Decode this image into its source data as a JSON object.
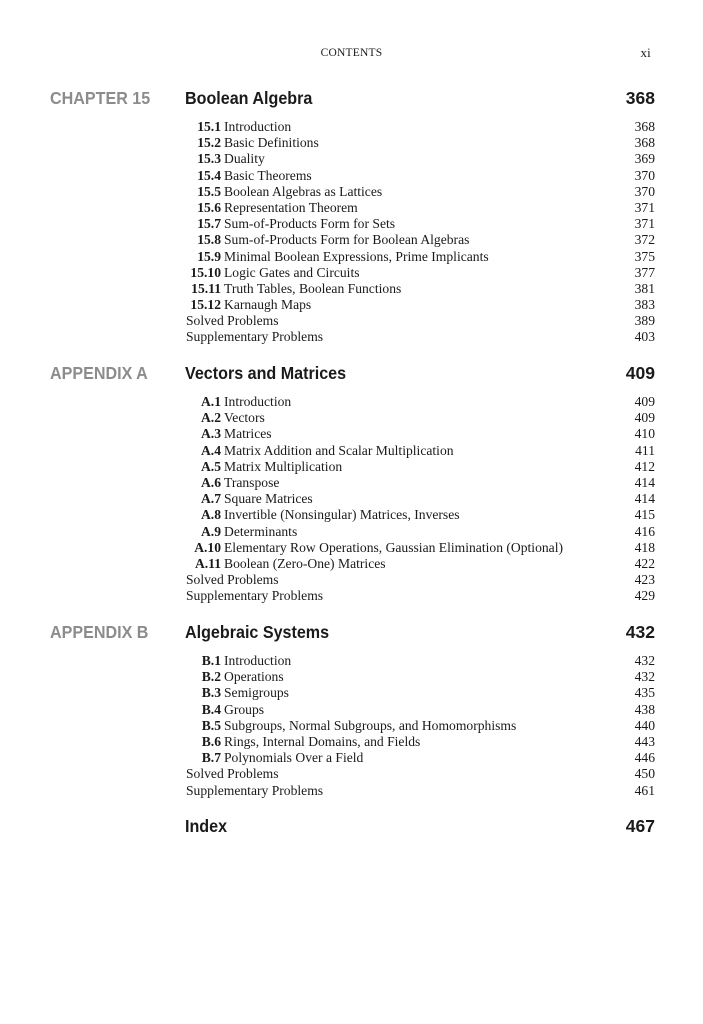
{
  "header": {
    "title": "CONTENTS",
    "page": "xi"
  },
  "sections": [
    {
      "label": "CHAPTER 15",
      "title": "Boolean Algebra",
      "page": "368",
      "entries": [
        {
          "num": "15.1",
          "text": "Introduction",
          "page": "368"
        },
        {
          "num": "15.2",
          "text": "Basic Definitions",
          "page": "368"
        },
        {
          "num": "15.3",
          "text": "Duality",
          "page": "369"
        },
        {
          "num": "15.4",
          "text": "Basic Theorems",
          "page": "370"
        },
        {
          "num": "15.5",
          "text": "Boolean Algebras as Lattices",
          "page": "370"
        },
        {
          "num": "15.6",
          "text": "Representation Theorem",
          "page": "371"
        },
        {
          "num": "15.7",
          "text": "Sum-of-Products Form for Sets",
          "page": "371"
        },
        {
          "num": "15.8",
          "text": "Sum-of-Products Form for Boolean Algebras",
          "page": "372"
        },
        {
          "num": "15.9",
          "text": "Minimal Boolean Expressions, Prime Implicants",
          "page": "375"
        },
        {
          "num": "15.10",
          "text": "Logic Gates and Circuits",
          "page": "377"
        },
        {
          "num": "15.11",
          "text": "Truth Tables, Boolean Functions",
          "page": "381"
        },
        {
          "num": "15.12",
          "text": "Karnaugh Maps",
          "page": "383"
        },
        {
          "num": "",
          "text": "Solved Problems",
          "page": "389"
        },
        {
          "num": "",
          "text": "Supplementary Problems",
          "page": "403"
        }
      ]
    },
    {
      "label": "APPENDIX A",
      "title": "Vectors and Matrices",
      "page": "409",
      "entries": [
        {
          "num": "A.1",
          "text": "Introduction",
          "page": "409"
        },
        {
          "num": "A.2",
          "text": "Vectors",
          "page": "409"
        },
        {
          "num": "A.3",
          "text": "Matrices",
          "page": "410"
        },
        {
          "num": "A.4",
          "text": "Matrix Addition and Scalar Multiplication",
          "page": "411"
        },
        {
          "num": "A.5",
          "text": "Matrix Multiplication",
          "page": "412"
        },
        {
          "num": "A.6",
          "text": "Transpose",
          "page": "414"
        },
        {
          "num": "A.7",
          "text": "Square Matrices",
          "page": "414"
        },
        {
          "num": "A.8",
          "text": "Invertible (Nonsingular) Matrices, Inverses",
          "page": "415"
        },
        {
          "num": "A.9",
          "text": "Determinants",
          "page": "416"
        },
        {
          "num": "A.10",
          "text": "Elementary Row Operations, Gaussian Elimination (Optional)",
          "page": "418"
        },
        {
          "num": "A.11",
          "text": "Boolean (Zero-One) Matrices",
          "page": "422"
        },
        {
          "num": "",
          "text": "Solved Problems",
          "page": "423"
        },
        {
          "num": "",
          "text": "Supplementary Problems",
          "page": "429"
        }
      ]
    },
    {
      "label": "APPENDIX B",
      "title": "Algebraic Systems",
      "page": "432",
      "entries": [
        {
          "num": "B.1",
          "text": "Introduction",
          "page": "432"
        },
        {
          "num": "B.2",
          "text": "Operations",
          "page": "432"
        },
        {
          "num": "B.3",
          "text": "Semigroups",
          "page": "435"
        },
        {
          "num": "B.4",
          "text": "Groups",
          "page": "438"
        },
        {
          "num": "B.5",
          "text": "Subgroups, Normal Subgroups, and Homomorphisms",
          "page": "440"
        },
        {
          "num": "B.6",
          "text": "Rings, Internal Domains, and Fields",
          "page": "443"
        },
        {
          "num": "B.7",
          "text": "Polynomials Over a Field",
          "page": "446"
        },
        {
          "num": "",
          "text": "Solved Problems",
          "page": "450"
        },
        {
          "num": "",
          "text": "Supplementary Problems",
          "page": "461"
        }
      ]
    },
    {
      "label": "",
      "title": "Index",
      "page": "467",
      "entries": []
    }
  ]
}
